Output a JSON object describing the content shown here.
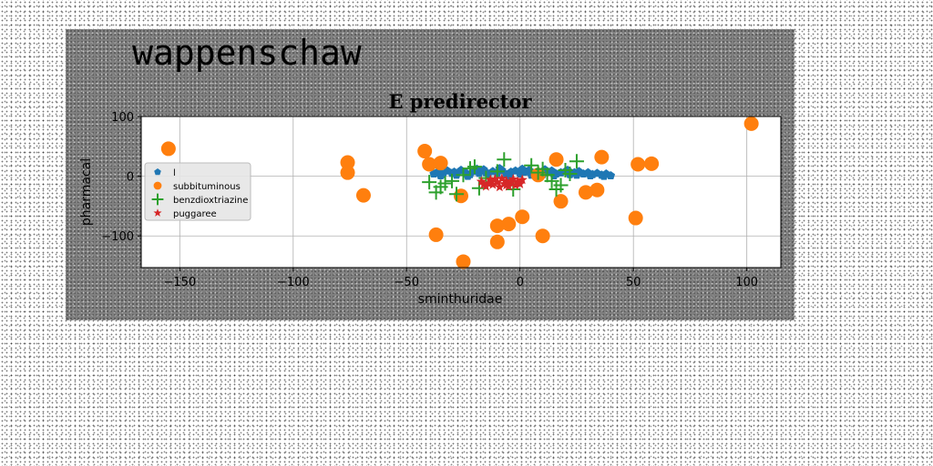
{
  "figure_title": "wappenschaw",
  "chart_data": {
    "type": "scatter",
    "title": "E predirector",
    "xlabel": "sminthuridae",
    "ylabel": "pharmacal",
    "xlim": [
      -167,
      115
    ],
    "ylim": [
      -153,
      100
    ],
    "x_ticks": [
      -150,
      -100,
      -50,
      0,
      50,
      100
    ],
    "y_ticks": [
      100,
      0,
      -100
    ],
    "x_tick_labels": [
      "−150",
      "−100",
      "−50",
      "0",
      "50",
      "100"
    ],
    "y_tick_labels": [
      "100",
      "0",
      "−100"
    ],
    "grid": true,
    "legend_position": "center-left",
    "series": [
      {
        "name": "l",
        "marker": "pentagon",
        "color": "#1f77b4",
        "points": [
          [
            -38,
            4
          ],
          [
            -36,
            8
          ],
          [
            -34,
            3
          ],
          [
            -32,
            9
          ],
          [
            -30,
            5
          ],
          [
            -28,
            2
          ],
          [
            -26,
            10
          ],
          [
            -24,
            6
          ],
          [
            -22,
            3
          ],
          [
            -20,
            8
          ],
          [
            -18,
            5
          ],
          [
            -16,
            11
          ],
          [
            -14,
            4
          ],
          [
            -12,
            8
          ],
          [
            -10,
            5
          ],
          [
            -8,
            10
          ],
          [
            -6,
            3
          ],
          [
            -4,
            7
          ],
          [
            -2,
            9
          ],
          [
            0,
            4
          ],
          [
            2,
            7
          ],
          [
            4,
            10
          ],
          [
            6,
            5
          ],
          [
            8,
            8
          ],
          [
            10,
            3
          ],
          [
            12,
            7
          ],
          [
            14,
            9
          ],
          [
            16,
            4
          ],
          [
            18,
            6
          ],
          [
            20,
            8
          ],
          [
            22,
            3
          ],
          [
            24,
            6
          ],
          [
            26,
            8
          ],
          [
            28,
            4
          ],
          [
            30,
            6
          ],
          [
            32,
            3
          ],
          [
            34,
            5
          ],
          [
            36,
            2
          ],
          [
            38,
            4
          ],
          [
            40,
            1
          ],
          [
            -35,
            1
          ],
          [
            -29,
            7
          ],
          [
            -23,
            0
          ],
          [
            -15,
            6
          ],
          [
            -5,
            1
          ],
          [
            5,
            2
          ],
          [
            15,
            1
          ],
          [
            25,
            2
          ],
          [
            31,
            1
          ],
          [
            37,
            0
          ],
          [
            -19,
            12
          ],
          [
            -9,
            13
          ],
          [
            1,
            12
          ],
          [
            11,
            11
          ],
          [
            21,
            10
          ]
        ]
      },
      {
        "name": "subbituminous",
        "marker": "circle",
        "color": "#ff7f0e",
        "points": [
          [
            -155,
            46
          ],
          [
            -76,
            23
          ],
          [
            -76,
            6
          ],
          [
            -69,
            -32
          ],
          [
            -42,
            42
          ],
          [
            -40,
            20
          ],
          [
            -35,
            22
          ],
          [
            -37,
            -98
          ],
          [
            -25,
            -143
          ],
          [
            -26,
            -33
          ],
          [
            -10,
            -83
          ],
          [
            -5,
            -80
          ],
          [
            1,
            -68
          ],
          [
            -10,
            -110
          ],
          [
            10,
            -100
          ],
          [
            8,
            2
          ],
          [
            16,
            28
          ],
          [
            18,
            -42
          ],
          [
            36,
            32
          ],
          [
            34,
            -23
          ],
          [
            29,
            -27
          ],
          [
            51,
            -70
          ],
          [
            52,
            20
          ],
          [
            58,
            21
          ],
          [
            102,
            88
          ]
        ]
      },
      {
        "name": "benzdioxtriazine",
        "marker": "plus",
        "color": "#2ca02c",
        "points": [
          [
            -40,
            -10
          ],
          [
            -37,
            -27
          ],
          [
            -35,
            -18
          ],
          [
            -30,
            -8
          ],
          [
            -28,
            -30
          ],
          [
            -25,
            2
          ],
          [
            -22,
            13
          ],
          [
            -18,
            -20
          ],
          [
            -15,
            -3
          ],
          [
            -10,
            8
          ],
          [
            -7,
            28
          ],
          [
            -3,
            -22
          ],
          [
            5,
            18
          ],
          [
            8,
            6
          ],
          [
            10,
            12
          ],
          [
            14,
            -8
          ],
          [
            16,
            -22
          ],
          [
            18,
            -15
          ],
          [
            22,
            4
          ],
          [
            25,
            25
          ],
          [
            -33,
            -12
          ],
          [
            -20,
            16
          ],
          [
            12,
            2
          ],
          [
            20,
            10
          ]
        ]
      },
      {
        "name": "puggaree",
        "marker": "star",
        "color": "#d62728",
        "points": [
          [
            -17,
            -9
          ],
          [
            -15,
            -17
          ],
          [
            -13,
            -6
          ],
          [
            -12,
            -14
          ],
          [
            -10,
            -10
          ],
          [
            -9,
            -18
          ],
          [
            -8,
            -4
          ],
          [
            -7,
            -13
          ],
          [
            -6,
            -8
          ],
          [
            -5,
            -17
          ],
          [
            -4,
            -11
          ],
          [
            -3,
            -5
          ],
          [
            -2,
            -15
          ],
          [
            -1,
            -9
          ],
          [
            0,
            -13
          ],
          [
            1,
            -6
          ],
          [
            -14,
            -12
          ],
          [
            -11,
            -5
          ],
          [
            -16,
            -14
          ],
          [
            -6,
            -15
          ]
        ]
      }
    ]
  }
}
